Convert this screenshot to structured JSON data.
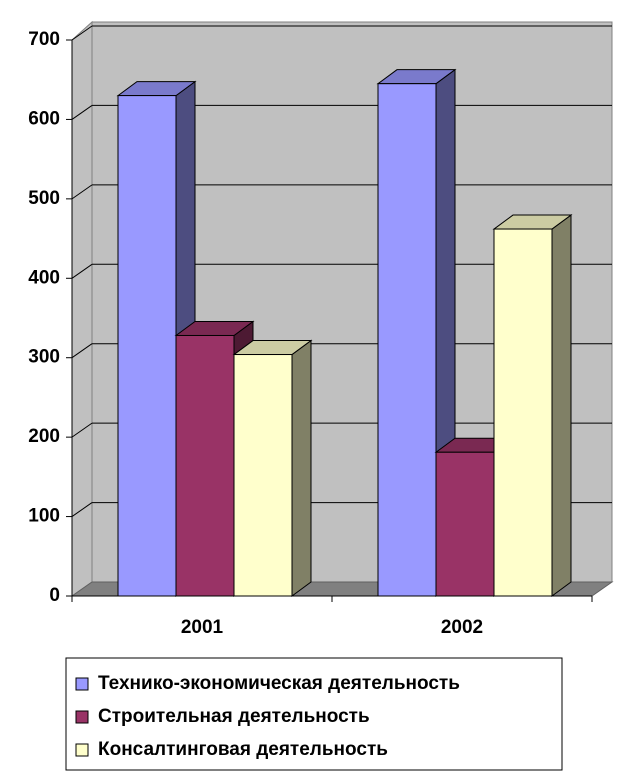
{
  "chart_data": {
    "type": "bar3d",
    "categories": [
      "2001",
      "2002"
    ],
    "series": [
      {
        "name": "Технико-экономическая деятельность",
        "color": "#9999ff",
        "values": [
          630,
          645
        ]
      },
      {
        "name": "Строительная деятельность",
        "color": "#993366",
        "values": [
          328,
          181
        ]
      },
      {
        "name": "Консалтинговая деятельность",
        "color": "#ffffcc",
        "values": [
          304,
          462
        ]
      }
    ],
    "ylim": [
      0,
      700
    ],
    "yticks": [
      0,
      100,
      200,
      300,
      400,
      500,
      600,
      700
    ],
    "grid": true,
    "legend": "bottom"
  }
}
